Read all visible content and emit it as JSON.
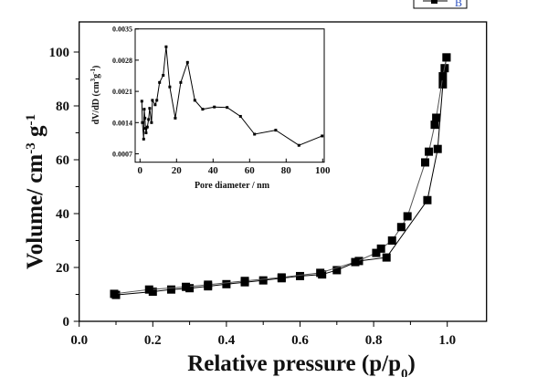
{
  "chart_data": [
    {
      "type": "scatter",
      "xlabel": "Relative pressure (p/p0)",
      "ylabel": "Volume/ cm-3 g-1",
      "xlim": [
        0,
        1.1
      ],
      "ylim": [
        0,
        110
      ],
      "xticks": [
        "0.0",
        "0.2",
        "0.4",
        "0.6",
        "0.8",
        "1.0"
      ],
      "yticks": [
        "0",
        "20",
        "40",
        "60",
        "80",
        "100"
      ],
      "legend": {
        "position": "top-right",
        "entries": [
          "B"
        ]
      },
      "series": [
        {
          "name": "B",
          "points": [
            [
              0.1,
              9.8
            ],
            [
              0.2,
              11
            ],
            [
              0.25,
              11.8
            ],
            [
              0.3,
              12.3
            ],
            [
              0.35,
              13
            ],
            [
              0.4,
              13.8
            ],
            [
              0.45,
              14.5
            ],
            [
              0.5,
              15.2
            ],
            [
              0.55,
              16
            ],
            [
              0.6,
              16.8
            ],
            [
              0.66,
              17.4
            ],
            [
              0.7,
              19
            ],
            [
              0.76,
              22.4
            ],
            [
              0.835,
              23.7
            ],
            [
              0.946,
              45
            ],
            [
              0.974,
              64
            ],
            [
              0.988,
              88
            ],
            [
              0.993,
              94
            ],
            [
              0.998,
              98
            ]
          ]
        },
        {
          "name": "",
          "points": [
            [
              0.998,
              98
            ],
            [
              0.988,
              91
            ],
            [
              0.97,
              75.6
            ],
            [
              0.966,
              73
            ],
            [
              0.95,
              63
            ],
            [
              0.94,
              59
            ],
            [
              0.892,
              39
            ],
            [
              0.875,
              35
            ],
            [
              0.85,
              30
            ],
            [
              0.82,
              27
            ],
            [
              0.807,
              25.4
            ],
            [
              0.75,
              22
            ],
            [
              0.655,
              18
            ],
            [
              0.55,
              16.3
            ],
            [
              0.45,
              15
            ],
            [
              0.35,
              13.6
            ],
            [
              0.29,
              12.8
            ],
            [
              0.19,
              11.8
            ],
            [
              0.095,
              10.2
            ]
          ]
        }
      ]
    },
    {
      "type": "line",
      "xlabel": "Pore diameter / nm",
      "ylabel": "dV/dD (cm3g-1)",
      "xlim": [
        -2,
        100
      ],
      "ylim": [
        0.0004,
        0.0035
      ],
      "xticks": [
        "0",
        "20",
        "40",
        "60",
        "80",
        "100"
      ],
      "yticks": [
        "0.0007",
        "0.0014",
        "0.0021",
        "0.0028",
        "0.0035"
      ],
      "x": [
        1,
        1.3,
        2,
        2.3,
        2.7,
        3,
        3.3,
        4,
        4.7,
        5.3,
        6.3,
        6.8,
        8.3,
        9.2,
        10.7,
        12.7,
        14.3,
        16.3,
        19.3,
        22.3,
        26,
        30,
        34.3,
        40.7,
        47.7,
        55,
        62.7,
        74.3,
        87,
        99.7
      ],
      "y": [
        0.00188,
        0.0014,
        0.00103,
        0.0017,
        0.0015,
        0.00127,
        0.00117,
        0.0013,
        0.00147,
        0.00172,
        0.0014,
        0.0019,
        0.0018,
        0.0019,
        0.0023,
        0.00246,
        0.0031,
        0.0022,
        0.0015,
        0.0023,
        0.00275,
        0.0019,
        0.0017,
        0.00175,
        0.00174,
        0.00154,
        0.00114,
        0.00123,
        0.00089,
        0.0011
      ]
    }
  ]
}
